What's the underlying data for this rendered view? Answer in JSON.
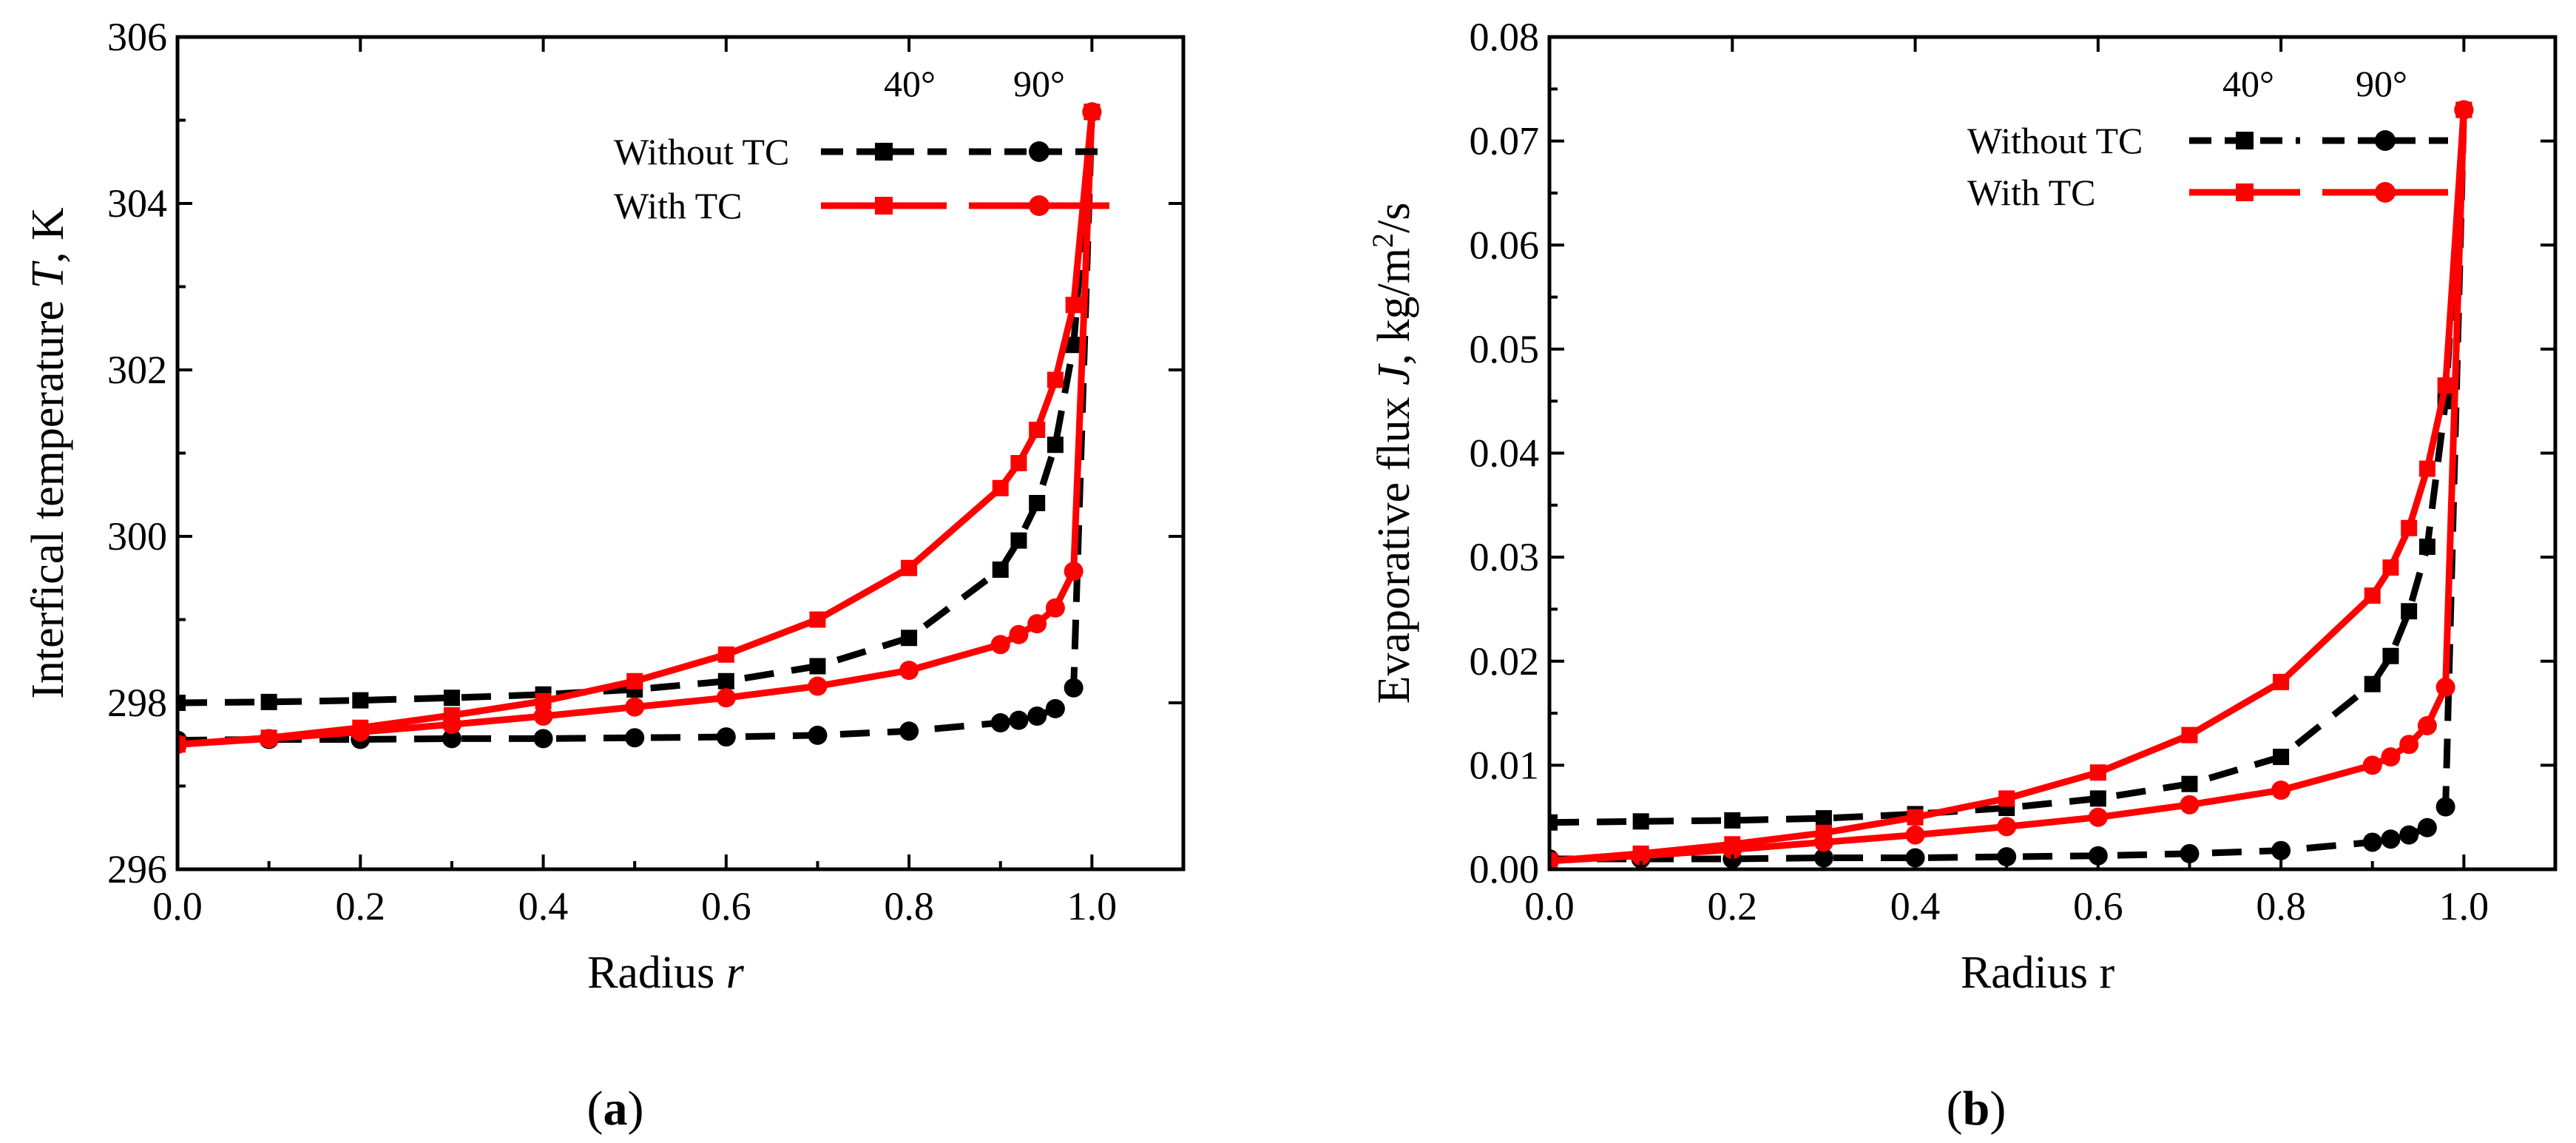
{
  "chart_data": [
    {
      "type": "line",
      "panel_label": "(a)",
      "xlabel": "Radius r",
      "xlabel_parts": [
        "Radius ",
        "r"
      ],
      "ylabel": "Interfical temperature T, K",
      "ylabel_parts": [
        "Interfical temperature ",
        "T",
        ", K"
      ],
      "xlim": [
        0.0,
        1.1
      ],
      "ylim": [
        296,
        306
      ],
      "xticks": [
        0.0,
        0.2,
        0.4,
        0.6,
        0.8,
        1.0
      ],
      "xtick_labels": [
        "0.0",
        "0.2",
        "0.4",
        "0.6",
        "0.8",
        "1.0"
      ],
      "yticks": [
        296,
        298,
        300,
        302,
        304,
        306
      ],
      "ytick_labels": [
        "296",
        "298",
        "300",
        "302",
        "304",
        "306"
      ],
      "legend": {
        "angle_labels": [
          "40°",
          "90°"
        ],
        "row_labels": [
          "Without TC",
          "With TC"
        ]
      },
      "series": [
        {
          "name": "Without TC 40°",
          "color": "#000000",
          "style": "dashed",
          "marker": "square",
          "x": [
            0.0,
            0.1,
            0.2,
            0.3,
            0.4,
            0.5,
            0.6,
            0.7,
            0.8,
            0.9,
            0.92,
            0.94,
            0.96,
            0.98,
            1.0
          ],
          "y": [
            298.0,
            298.01,
            298.03,
            298.06,
            298.1,
            298.16,
            298.26,
            298.44,
            298.78,
            299.6,
            299.95,
            300.4,
            301.1,
            302.3,
            305.1
          ]
        },
        {
          "name": "Without TC 90°",
          "color": "#000000",
          "style": "dashed",
          "marker": "circle",
          "x": [
            0.0,
            0.1,
            0.2,
            0.3,
            0.4,
            0.5,
            0.6,
            0.7,
            0.8,
            0.9,
            0.92,
            0.94,
            0.96,
            0.98,
            1.0
          ],
          "y": [
            297.55,
            297.56,
            297.56,
            297.57,
            297.57,
            297.58,
            297.59,
            297.61,
            297.66,
            297.76,
            297.79,
            297.84,
            297.93,
            298.18,
            305.1
          ]
        },
        {
          "name": "With TC 40°",
          "color": "#ff0000",
          "style": "solid",
          "marker": "square",
          "x": [
            0.0,
            0.1,
            0.2,
            0.3,
            0.4,
            0.5,
            0.6,
            0.7,
            0.8,
            0.9,
            0.92,
            0.94,
            0.96,
            0.98,
            1.0
          ],
          "y": [
            297.5,
            297.58,
            297.7,
            297.85,
            298.02,
            298.26,
            298.58,
            299.0,
            299.62,
            300.58,
            300.88,
            301.28,
            301.88,
            302.78,
            305.1
          ]
        },
        {
          "name": "With TC 90°",
          "color": "#ff0000",
          "style": "solid",
          "marker": "circle",
          "x": [
            0.0,
            0.1,
            0.2,
            0.3,
            0.4,
            0.5,
            0.6,
            0.7,
            0.8,
            0.9,
            0.92,
            0.94,
            0.96,
            0.98,
            1.0
          ],
          "y": [
            297.5,
            297.57,
            297.65,
            297.74,
            297.84,
            297.95,
            298.06,
            298.2,
            298.39,
            298.7,
            298.82,
            298.95,
            299.14,
            299.58,
            305.1
          ]
        }
      ]
    },
    {
      "type": "line",
      "panel_label": "(b)",
      "xlabel": "Radius r",
      "xlabel_parts": [
        "Radius r",
        ""
      ],
      "ylabel": "Evaporative flux J, kg/m2/s",
      "ylabel_parts": [
        "Evaporative flux ",
        "J",
        ", kg/m",
        "2",
        "/s"
      ],
      "xlim": [
        0.0,
        1.1
      ],
      "ylim": [
        0.0,
        0.08
      ],
      "xticks": [
        0.0,
        0.2,
        0.4,
        0.6,
        0.8,
        1.0
      ],
      "xtick_labels": [
        "0.0",
        "0.2",
        "0.4",
        "0.6",
        "0.8",
        "1.0"
      ],
      "yticks": [
        0.0,
        0.01,
        0.02,
        0.03,
        0.04,
        0.05,
        0.06,
        0.07,
        0.08
      ],
      "ytick_labels": [
        "0.00",
        "0.01",
        "0.02",
        "0.03",
        "0.04",
        "0.05",
        "0.06",
        "0.07",
        "0.08"
      ],
      "legend": {
        "angle_labels": [
          "40°",
          "90°"
        ],
        "row_labels": [
          "Without TC",
          "With TC"
        ]
      },
      "series": [
        {
          "name": "Without TC 40°",
          "color": "#000000",
          "style": "dashed",
          "marker": "square",
          "x": [
            0.0,
            0.1,
            0.2,
            0.3,
            0.4,
            0.5,
            0.6,
            0.7,
            0.8,
            0.9,
            0.92,
            0.94,
            0.96,
            0.98,
            1.0
          ],
          "y": [
            0.0045,
            0.0046,
            0.0047,
            0.0049,
            0.0053,
            0.0059,
            0.0068,
            0.0082,
            0.0108,
            0.0178,
            0.0205,
            0.0248,
            0.031,
            0.045,
            0.073
          ]
        },
        {
          "name": "Without TC 90°",
          "color": "#000000",
          "style": "dashed",
          "marker": "circle",
          "x": [
            0.0,
            0.1,
            0.2,
            0.3,
            0.4,
            0.5,
            0.6,
            0.7,
            0.8,
            0.9,
            0.92,
            0.94,
            0.96,
            0.98,
            1.0
          ],
          "y": [
            0.001,
            0.001,
            0.001,
            0.0011,
            0.0011,
            0.0012,
            0.0013,
            0.0015,
            0.0018,
            0.0026,
            0.0029,
            0.0033,
            0.004,
            0.006,
            0.073
          ]
        },
        {
          "name": "With TC 40°",
          "color": "#ff0000",
          "style": "solid",
          "marker": "square",
          "x": [
            0.0,
            0.1,
            0.2,
            0.3,
            0.4,
            0.5,
            0.6,
            0.7,
            0.8,
            0.9,
            0.92,
            0.94,
            0.96,
            0.98,
            1.0
          ],
          "y": [
            0.0008,
            0.0015,
            0.0024,
            0.0035,
            0.005,
            0.0068,
            0.0093,
            0.0129,
            0.018,
            0.0263,
            0.029,
            0.0328,
            0.0385,
            0.0465,
            0.073
          ]
        },
        {
          "name": "With TC 90°",
          "color": "#ff0000",
          "style": "solid",
          "marker": "circle",
          "x": [
            0.0,
            0.1,
            0.2,
            0.3,
            0.4,
            0.5,
            0.6,
            0.7,
            0.8,
            0.9,
            0.92,
            0.94,
            0.96,
            0.98,
            1.0
          ],
          "y": [
            0.0008,
            0.0013,
            0.0019,
            0.0026,
            0.0033,
            0.0041,
            0.005,
            0.0062,
            0.0076,
            0.01,
            0.0108,
            0.012,
            0.0138,
            0.0175,
            0.073
          ]
        }
      ]
    }
  ]
}
